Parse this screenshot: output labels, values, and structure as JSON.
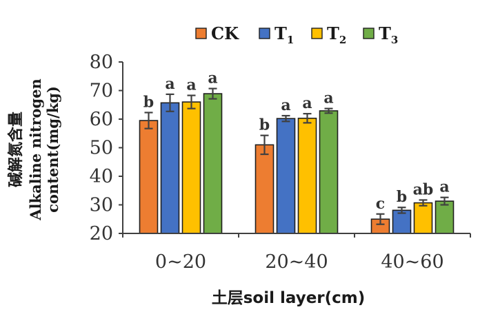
{
  "chart_data": {
    "type": "bar",
    "xlabel": "土层soil layer(cm)",
    "ylabel_cn": "碱解氮含量",
    "ylabel_en_line1": "Alkaline  nitrogen",
    "ylabel_en_line2": "content(mg/kg)",
    "ylim": [
      20,
      80
    ],
    "yticks": [
      20,
      30,
      40,
      50,
      60,
      70,
      80
    ],
    "categories": [
      "0~20",
      "20~40",
      "40~60"
    ],
    "legend_position": "top",
    "grid": false,
    "series": [
      {
        "name": "CK",
        "base": "CK",
        "sub": "",
        "color": "#ED7D31",
        "values": [
          59.5,
          51.0,
          25.0
        ],
        "errors": [
          2.8,
          3.3,
          1.8
        ],
        "labels": [
          "b",
          "b",
          "c"
        ]
      },
      {
        "name": "T1",
        "base": "T",
        "sub": "1",
        "color": "#4472C4",
        "values": [
          65.7,
          60.2,
          28.1
        ],
        "errors": [
          3.0,
          1.0,
          1.0
        ],
        "labels": [
          "a",
          "a",
          "b"
        ]
      },
      {
        "name": "T2",
        "base": "T",
        "sub": "2",
        "color": "#FFC000",
        "values": [
          66.0,
          60.3,
          30.7
        ],
        "errors": [
          2.3,
          1.6,
          1.0
        ],
        "labels": [
          "a",
          "a",
          "ab"
        ]
      },
      {
        "name": "T3",
        "base": "T",
        "sub": "3",
        "color": "#70AD47",
        "values": [
          68.9,
          62.9,
          31.3
        ],
        "errors": [
          1.8,
          0.8,
          1.3
        ],
        "labels": [
          "a",
          "a",
          "a"
        ]
      }
    ]
  }
}
